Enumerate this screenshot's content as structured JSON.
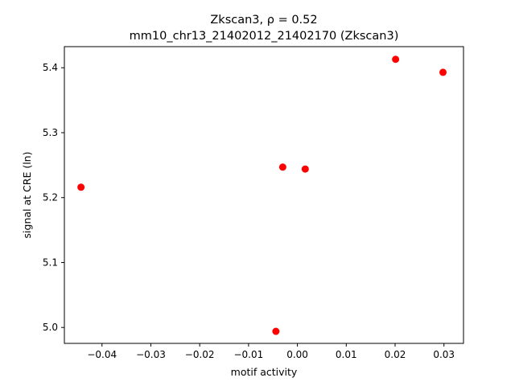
{
  "chart_data": {
    "type": "scatter",
    "title_line1": "Zkscan3, ρ = 0.52",
    "title_line2": "mm10_chr13_21402012_21402170 (Zkscan3)",
    "xlabel": "motif activity",
    "ylabel": "signal at CRE (ln)",
    "xlim": [
      -0.0477,
      0.034
    ],
    "ylim": [
      4.9755,
      5.4325
    ],
    "x_ticks": [
      -0.04,
      -0.03,
      -0.02,
      -0.01,
      0.0,
      0.01,
      0.02,
      0.03
    ],
    "x_tick_labels": [
      "−0.04",
      "−0.03",
      "−0.02",
      "−0.01",
      "0.00",
      "0.01",
      "0.02",
      "0.03"
    ],
    "y_ticks": [
      5.0,
      5.1,
      5.2,
      5.3,
      5.4
    ],
    "y_tick_labels": [
      "5.0",
      "5.1",
      "5.2",
      "5.3",
      "5.4"
    ],
    "grid": false,
    "marker_color": "#ff0000",
    "points": [
      {
        "x": -0.0443,
        "y": 5.216
      },
      {
        "x": -0.0044,
        "y": 4.994
      },
      {
        "x": -0.003,
        "y": 5.247
      },
      {
        "x": 0.0016,
        "y": 5.244
      },
      {
        "x": 0.0201,
        "y": 5.413
      },
      {
        "x": 0.0298,
        "y": 5.393
      }
    ]
  }
}
